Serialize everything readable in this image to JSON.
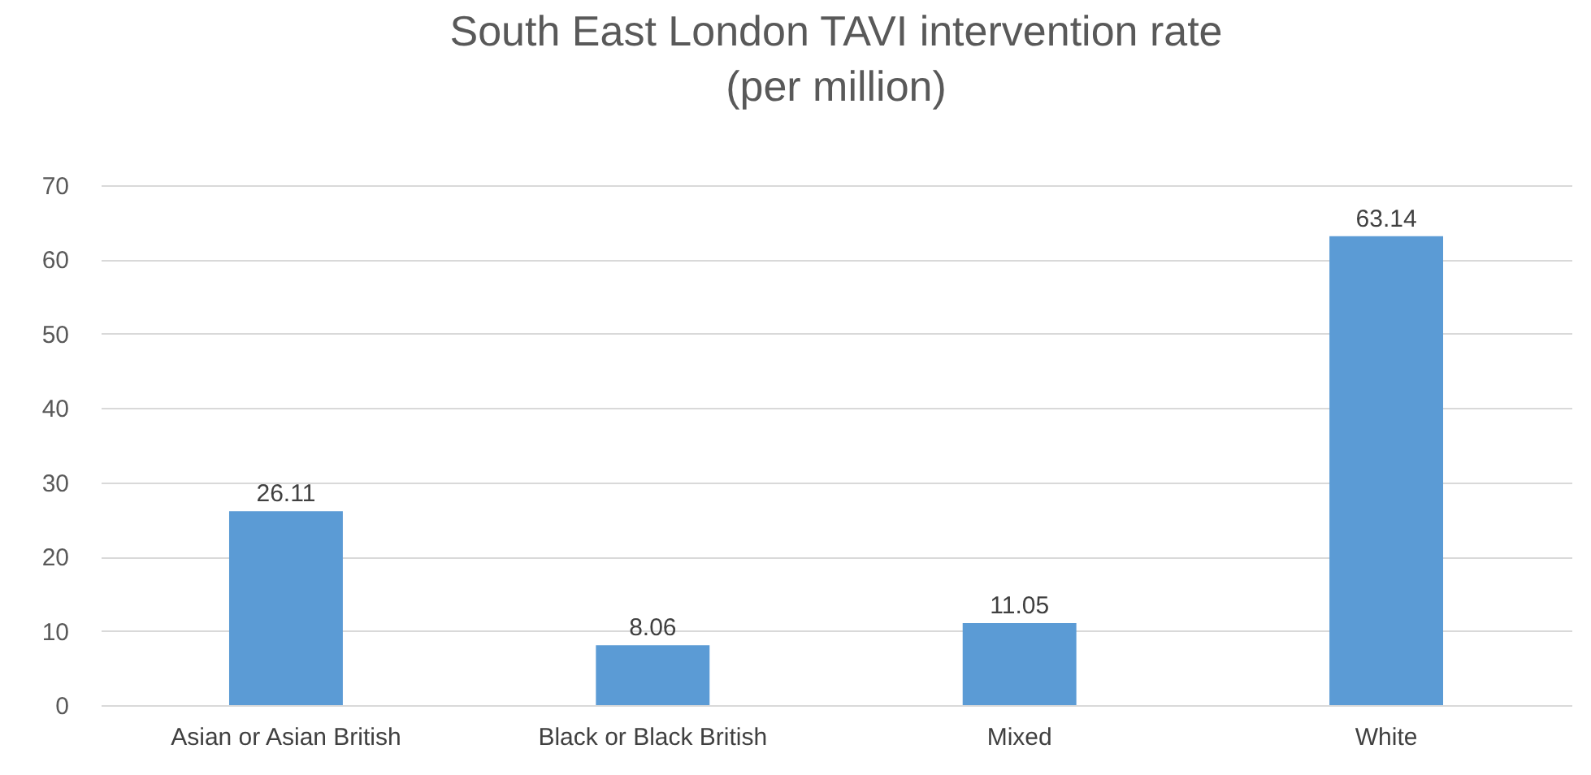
{
  "chart_data": {
    "type": "bar",
    "title": "South East London TAVI intervention rate",
    "subtitle": "(per million)",
    "categories": [
      "Asian or Asian British",
      "Black or Black British",
      "Mixed",
      "White"
    ],
    "values": [
      26.11,
      8.06,
      11.05,
      63.14
    ],
    "color": "#5b9bd5",
    "ylim": [
      0,
      70
    ],
    "yticks": [
      0,
      10,
      20,
      30,
      40,
      50,
      60,
      70
    ],
    "grid": "y",
    "data_labels": true
  }
}
